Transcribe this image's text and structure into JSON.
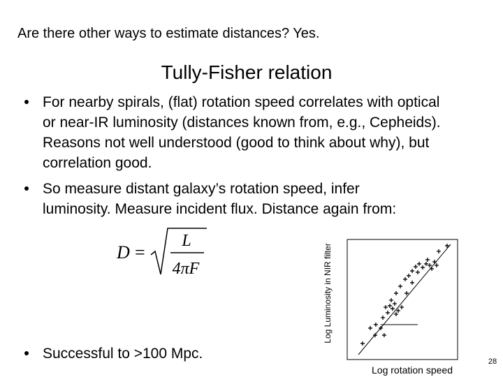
{
  "header": {
    "title": "Are there other ways to estimate distances?  Yes."
  },
  "slide_title": "Tully-Fisher relation",
  "bullets": [
    [
      "For nearby spirals, (flat) rotation speed correlates with optical",
      "or near-IR luminosity (distances known from, e.g., Cepheids).",
      "Reasons not well understood (good to think about why), but",
      "correlation good."
    ],
    [
      "So measure distant galaxy’s rotation speed, infer",
      "luminosity.  Measure incident flux.  Distance again from:"
    ],
    [
      "Successful to >100 Mpc."
    ]
  ],
  "formula": {
    "lhs": "D",
    "equals": "=",
    "numerator": "L",
    "denominator": "4πF"
  },
  "page_number": "28",
  "chart_data": {
    "type": "scatter",
    "x_label": "Log rotation speed",
    "y_label": "Log Luminosity in NIR filter",
    "xlim": [
      0,
      100
    ],
    "ylim": [
      0,
      100
    ],
    "color": "#000000",
    "x": [
      13.9,
      20.9,
      25.9,
      30.4,
      32.3,
      34.8,
      38.6,
      41.1,
      43.0,
      46.2,
      49.4,
      36.7,
      39.9,
      44.3,
      48.1,
      52.5,
      55.7,
      58.9,
      62.0,
      65.2,
      68.4,
      71.5,
      74.7,
      72.8,
      76.6,
      79.1,
      82.9,
      90.5,
      58.9,
      33.5,
      25.3,
      53.8,
      63.9,
      81.0,
      44.3
    ],
    "values": [
      13.4,
      26.2,
      29.1,
      26.2,
      34.9,
      43.6,
      44.8,
      42.4,
      46.5,
      40.7,
      43.6,
      39.0,
      49.4,
      55.2,
      61.0,
      66.9,
      69.8,
      73.8,
      77.3,
      79.7,
      76.7,
      79.7,
      78.5,
      83.1,
      75.6,
      81.4,
      90.1,
      94.8,
      64.0,
      20.3,
      20.3,
      55.2,
      72.7,
      78.5,
      37.8
    ]
  }
}
